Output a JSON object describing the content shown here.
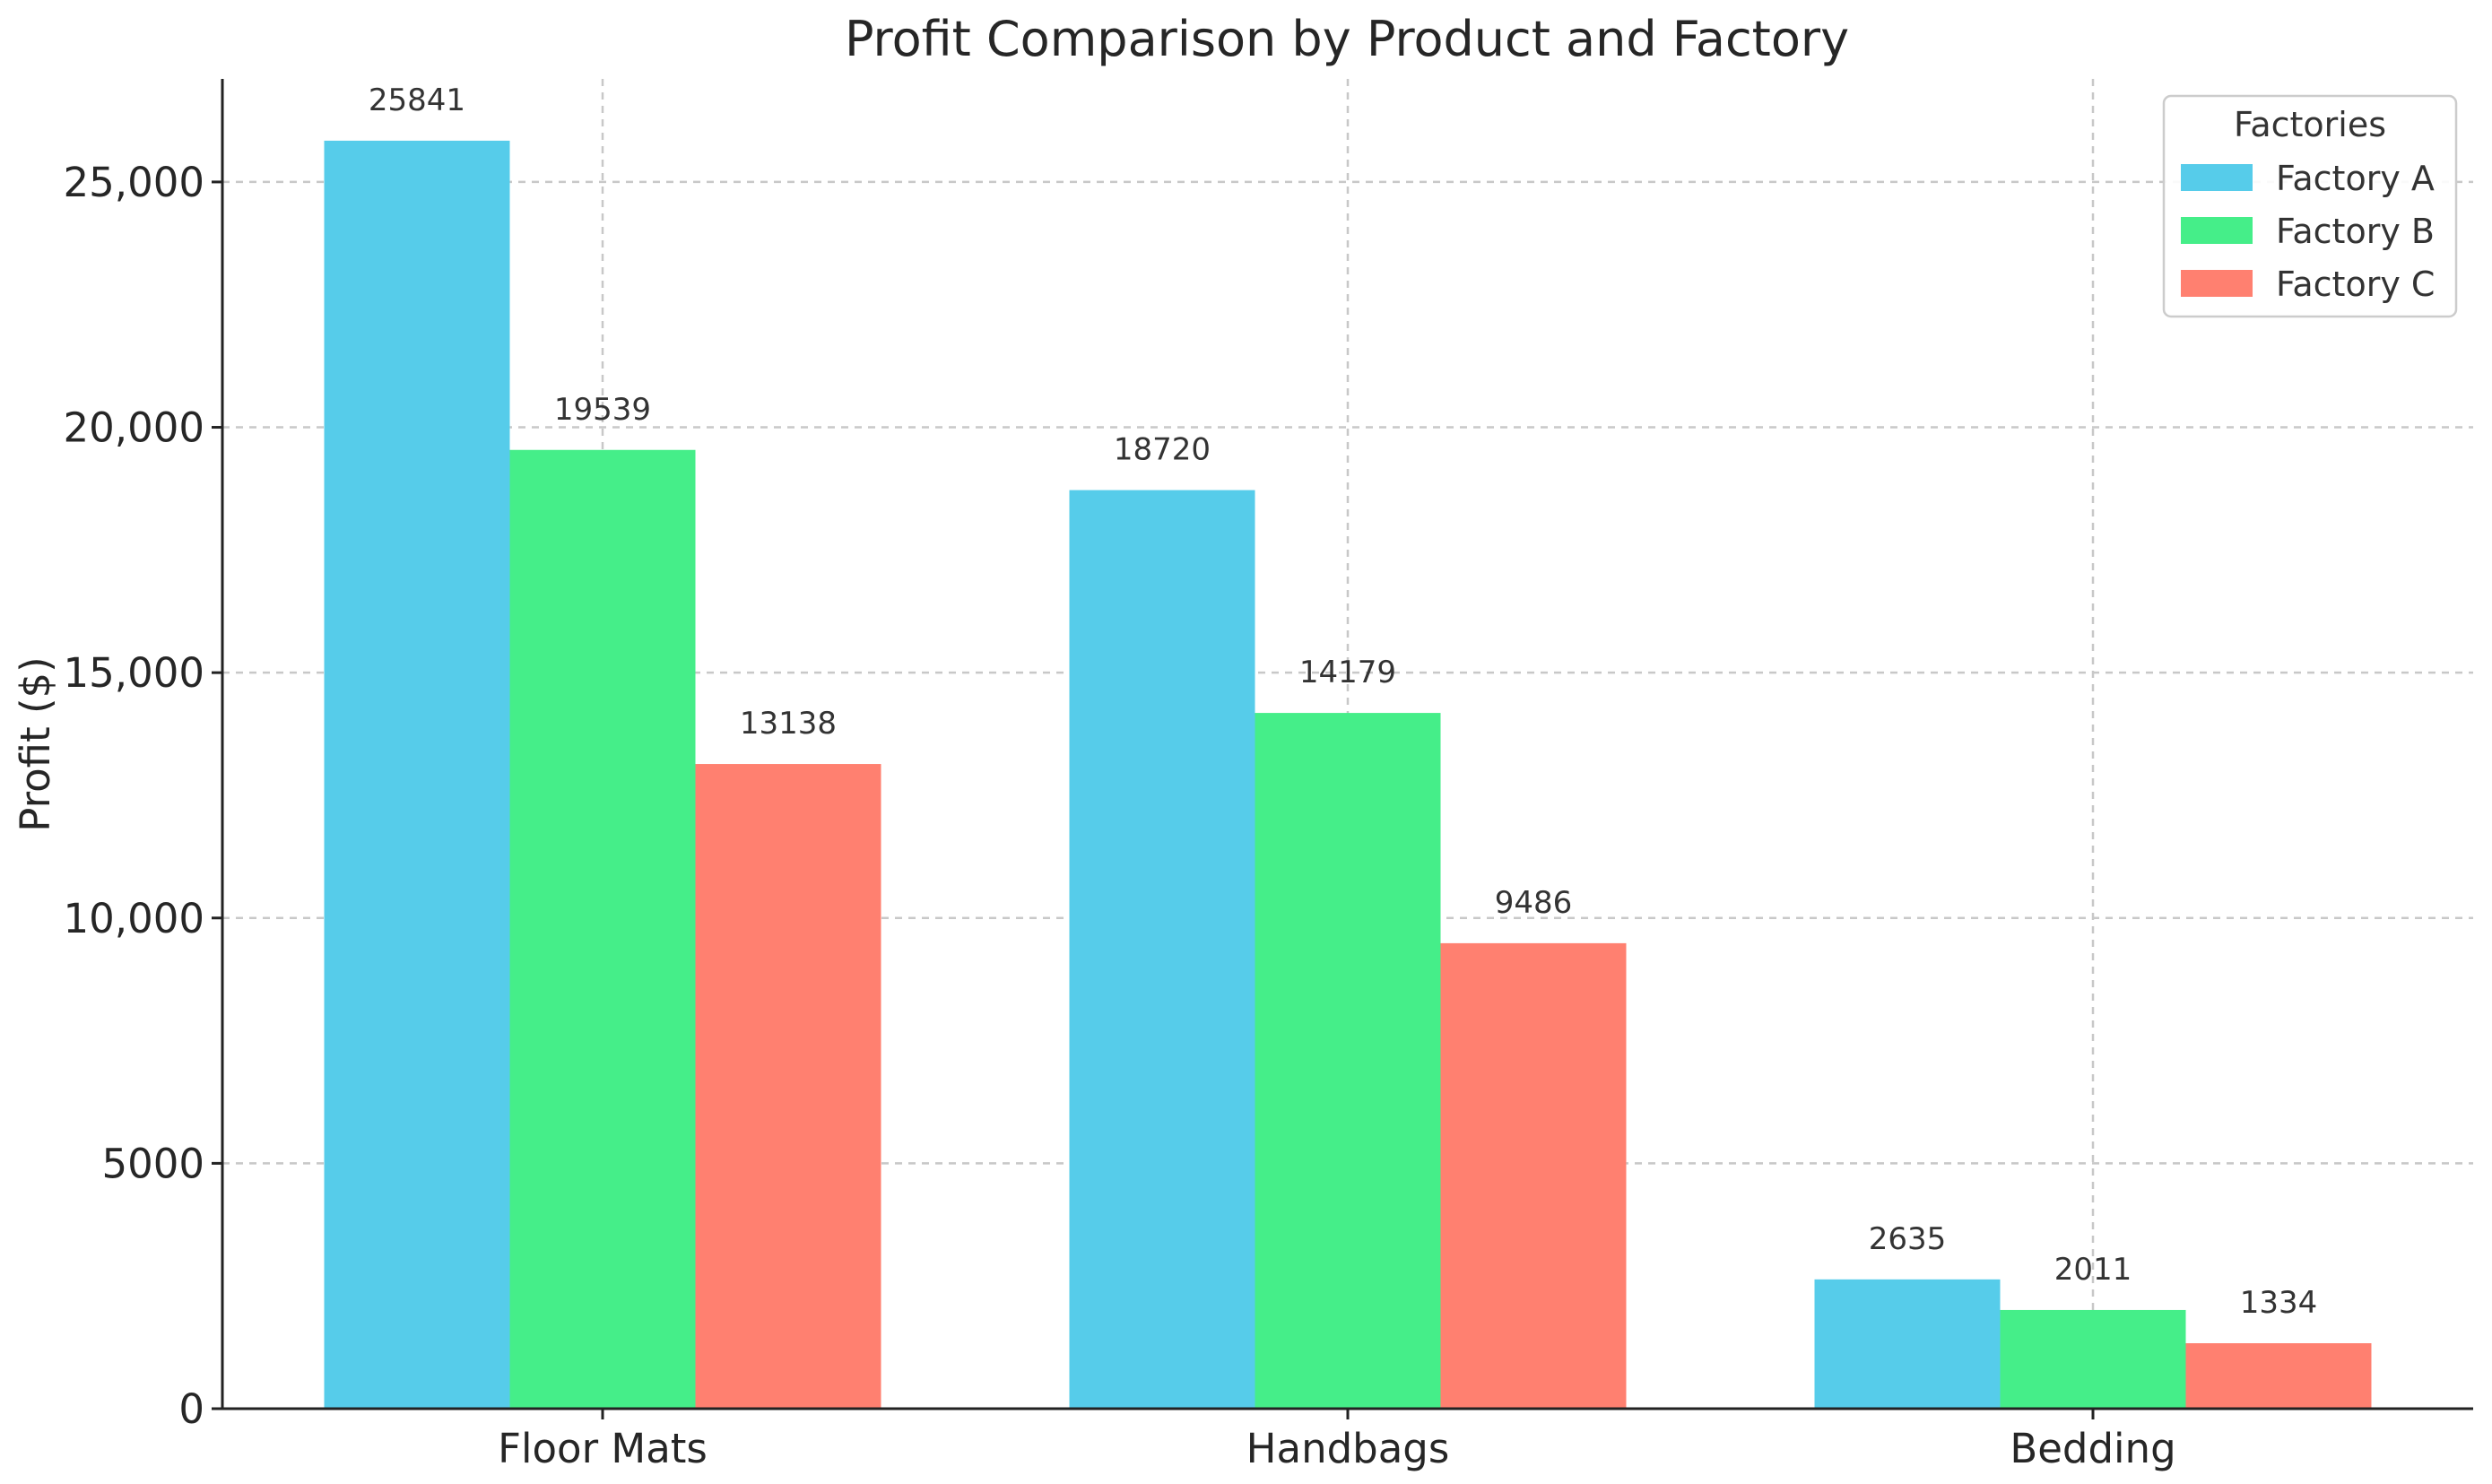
{
  "chart_data": {
    "type": "bar",
    "title": "Profit Comparison by Product and Factory",
    "xlabel": "",
    "ylabel": "Profit ($)",
    "categories": [
      "Floor Mats",
      "Handbags",
      "Bedding"
    ],
    "series": [
      {
        "name": "Factory A",
        "color": "#56CCEA",
        "values": [
          25841,
          18720,
          2635
        ]
      },
      {
        "name": "Factory B",
        "color": "#45EE89",
        "values": [
          19539,
          14179,
          2011
        ]
      },
      {
        "name": "Factory C",
        "color": "#FF8070",
        "values": [
          13138,
          9486,
          1334
        ]
      }
    ],
    "ylim": [
      0,
      27100
    ],
    "yticks": [
      0,
      5000,
      10000,
      15000,
      20000,
      25000
    ],
    "ytick_labels": [
      "0",
      "5000",
      "10,000",
      "15,000",
      "20,000",
      "25,000"
    ],
    "grid": true,
    "legend": {
      "title": "Factories",
      "position": "top-right"
    }
  }
}
